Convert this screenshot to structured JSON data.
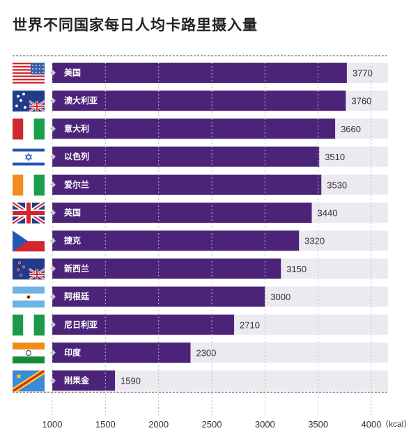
{
  "chart_data": {
    "type": "bar",
    "orientation": "horizontal",
    "title": "世界不同国家每日人均卡路里摄入量",
    "categories": [
      "美国",
      "澳大利亚",
      "意大利",
      "以色列",
      "爱尔兰",
      "英国",
      "捷克",
      "新西兰",
      "阿根廷",
      "尼日利亚",
      "印度",
      "刚果金"
    ],
    "values": [
      3770,
      3760,
      3660,
      3510,
      3530,
      3440,
      3320,
      3150,
      3000,
      2710,
      2300,
      1590
    ],
    "flags": [
      "us-flag-icon",
      "australia-flag-icon",
      "italy-flag-icon",
      "israel-flag-icon",
      "ireland-flag-icon",
      "uk-flag-icon",
      "czech-flag-icon",
      "new-zealand-flag-icon",
      "argentina-flag-icon",
      "nigeria-flag-icon",
      "india-flag-icon",
      "dr-congo-flag-icon"
    ],
    "xlim": [
      1000,
      4000
    ],
    "xticks": [
      1000,
      1500,
      2000,
      2500,
      3000,
      3500,
      4000
    ],
    "tick_labels": [
      "1000",
      "1500",
      "2000",
      "2500",
      "3000",
      "3500",
      "4000"
    ],
    "unit": "（kcal）",
    "colors": {
      "bar": "#4b2479",
      "track": "#ece9f0",
      "diamond": "#c9c0d6"
    }
  }
}
